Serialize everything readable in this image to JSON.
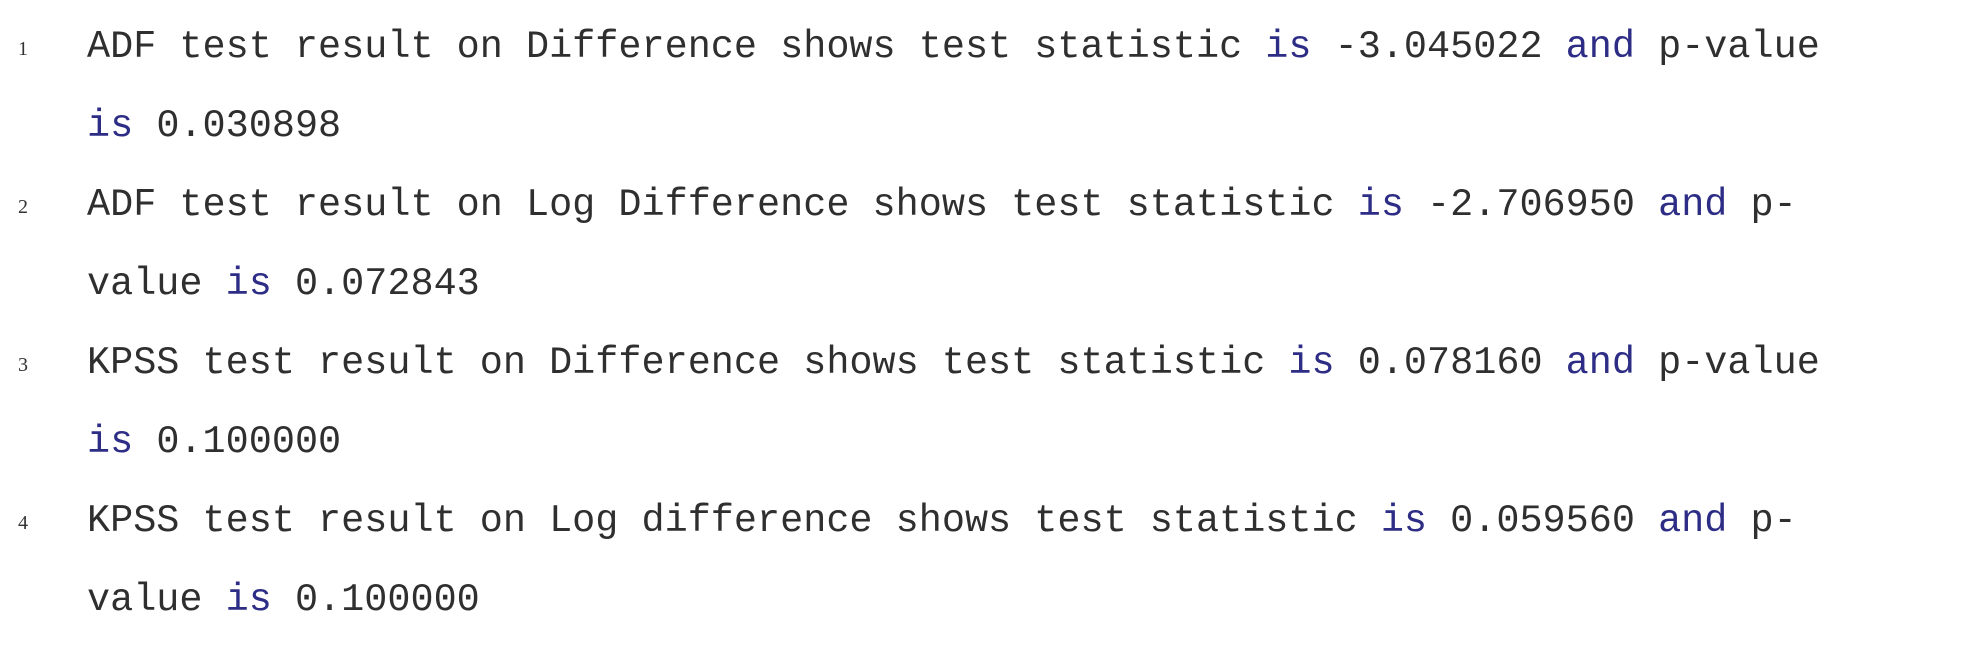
{
  "lines": [
    {
      "number": "1",
      "segments": [
        {
          "text": "ADF test result on Difference shows test statistic ",
          "kw": false
        },
        {
          "text": "is",
          "kw": true
        },
        {
          "text": " -3.045022 ",
          "kw": false
        },
        {
          "text": "and",
          "kw": true
        },
        {
          "text": " p-value ",
          "kw": false
        },
        {
          "text": "is",
          "kw": true
        },
        {
          "text": " 0.030898",
          "kw": false
        }
      ]
    },
    {
      "number": "2",
      "segments": [
        {
          "text": "ADF test result on Log Difference shows test statistic ",
          "kw": false
        },
        {
          "text": "is",
          "kw": true
        },
        {
          "text": " -2.706950 ",
          "kw": false
        },
        {
          "text": "and",
          "kw": true
        },
        {
          "text": " p-value ",
          "kw": false
        },
        {
          "text": "is",
          "kw": true
        },
        {
          "text": " 0.072843",
          "kw": false
        }
      ]
    },
    {
      "number": "3",
      "segments": [
        {
          "text": "KPSS test result on Difference shows test statistic ",
          "kw": false
        },
        {
          "text": "is",
          "kw": true
        },
        {
          "text": " 0.078160 ",
          "kw": false
        },
        {
          "text": "and",
          "kw": true
        },
        {
          "text": " p-value ",
          "kw": false
        },
        {
          "text": "is",
          "kw": true
        },
        {
          "text": " 0.100000",
          "kw": false
        }
      ]
    },
    {
      "number": "4",
      "segments": [
        {
          "text": "KPSS test result on Log difference shows test statistic ",
          "kw": false
        },
        {
          "text": "is",
          "kw": true
        },
        {
          "text": " 0.059560 ",
          "kw": false
        },
        {
          "text": "and",
          "kw": true
        },
        {
          "text": " p-value ",
          "kw": false
        },
        {
          "text": "is",
          "kw": true
        },
        {
          "text": " 0.100000",
          "kw": false
        }
      ]
    }
  ],
  "colors": {
    "keyword": "#2d2d86",
    "text": "#2f2f2f",
    "line_number": "#333333",
    "background": "#ffffff"
  }
}
